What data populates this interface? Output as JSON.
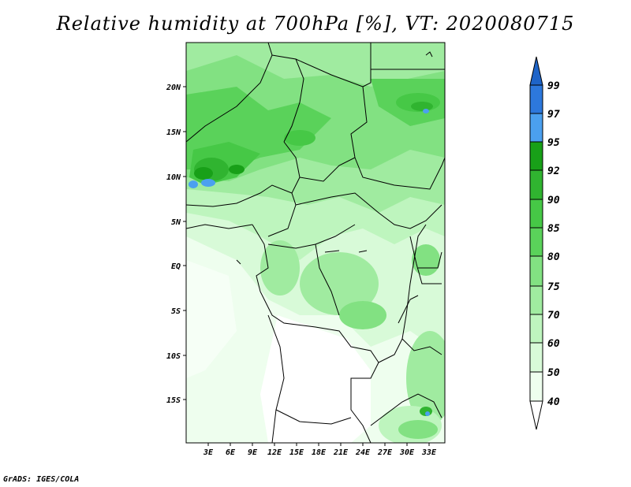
{
  "title": "Relative humidity at 700hPa [%], VT: 2020080715",
  "footer": "GrADS: IGES/COLA",
  "map": {
    "lat_ticks": [
      "20N",
      "15N",
      "10N",
      "5N",
      "EQ",
      "5S",
      "10S",
      "15S"
    ],
    "lon_ticks": [
      "3E",
      "6E",
      "9E",
      "12E",
      "15E",
      "18E",
      "21E",
      "24E",
      "27E",
      "30E",
      "33E"
    ]
  },
  "colorbar": {
    "levels": [
      "99",
      "97",
      "95",
      "92",
      "90",
      "85",
      "80",
      "75",
      "70",
      "60",
      "50",
      "40"
    ],
    "colors": {
      "above_99": "#1e64c8",
      "97_99": "#2d78dc",
      "95_97": "#4ba0ef",
      "92_95": "#18a018",
      "90_92": "#30b430",
      "85_90": "#46c846",
      "80_85": "#5ad25a",
      "75_80": "#82e182",
      "70_75": "#a0eba0",
      "60_70": "#bef5be",
      "50_60": "#d8fad8",
      "40_50": "#eefeee",
      "below_40": "#ffffff"
    }
  }
}
